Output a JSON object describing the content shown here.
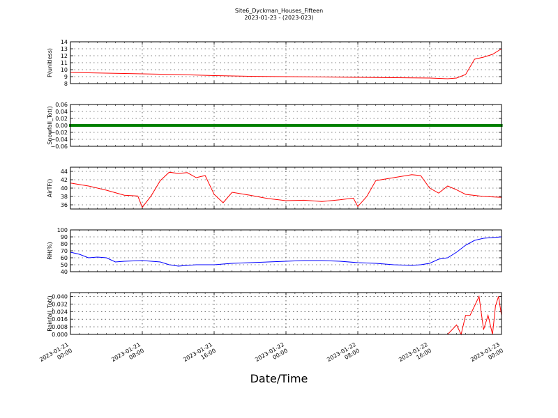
{
  "figure": {
    "title": "Site6_Dyckman_Houses_Fifteen",
    "subtitle": "2023-01-23 - (2023-023)",
    "xlabel": "Date/Time"
  },
  "chart_data": [
    {
      "type": "line",
      "ylabel": "P(unitless)",
      "xlim": [
        "2023-01-21 00:00",
        "2023-01-23 00:00"
      ],
      "ylim": [
        8,
        14
      ],
      "yticks": [
        8,
        9,
        10,
        11,
        12,
        13,
        14
      ],
      "ytick_labels": [
        "8",
        "9",
        "10",
        "11",
        "12",
        "13",
        "14"
      ],
      "grid": true,
      "color": "#ff0000",
      "x": [
        "2023-01-21 00:00",
        "2023-01-21 04:00",
        "2023-01-21 08:00",
        "2023-01-21 12:00",
        "2023-01-21 16:00",
        "2023-01-21 20:00",
        "2023-01-22 00:00",
        "2023-01-22 04:00",
        "2023-01-22 08:00",
        "2023-01-22 12:00",
        "2023-01-22 16:00",
        "2023-01-22 18:00",
        "2023-01-22 19:00",
        "2023-01-22 20:00",
        "2023-01-22 21:00",
        "2023-01-22 22:00",
        "2023-01-22 23:00",
        "2023-01-23 00:00"
      ],
      "values": [
        9.6,
        9.5,
        9.4,
        9.3,
        9.15,
        9.05,
        9.0,
        8.95,
        8.9,
        8.85,
        8.8,
        8.7,
        8.8,
        9.3,
        11.5,
        11.8,
        12.2,
        13.0
      ]
    },
    {
      "type": "line",
      "ylabel": "Snowfall_Tot()",
      "xlim": [
        "2023-01-21 00:00",
        "2023-01-23 00:00"
      ],
      "ylim": [
        -0.06,
        0.06
      ],
      "yticks": [
        -0.06,
        -0.04,
        -0.02,
        0.0,
        0.02,
        0.04,
        0.06
      ],
      "ytick_labels": [
        "−0.06",
        "−0.04",
        "−0.02",
        "0.00",
        "0.02",
        "0.04",
        "0.06"
      ],
      "grid": true,
      "color": "#008000",
      "marker": "square",
      "x": [
        "2023-01-21 00:00",
        "2023-01-23 00:00"
      ],
      "values": [
        0.0,
        0.0
      ]
    },
    {
      "type": "line",
      "ylabel": "AirTF()",
      "xlim": [
        "2023-01-21 00:00",
        "2023-01-23 00:00"
      ],
      "ylim": [
        35,
        45
      ],
      "yticks": [
        36,
        38,
        40,
        42,
        44
      ],
      "ytick_labels": [
        "36",
        "38",
        "40",
        "42",
        "44"
      ],
      "grid": true,
      "color": "#ff0000",
      "x": [
        "2023-01-21 00:00",
        "2023-01-21 02:00",
        "2023-01-21 04:00",
        "2023-01-21 06:00",
        "2023-01-21 07:30",
        "2023-01-21 08:00",
        "2023-01-21 09:00",
        "2023-01-21 10:00",
        "2023-01-21 11:00",
        "2023-01-21 12:00",
        "2023-01-21 13:00",
        "2023-01-21 14:00",
        "2023-01-21 15:00",
        "2023-01-21 16:00",
        "2023-01-21 17:00",
        "2023-01-21 18:00",
        "2023-01-21 20:00",
        "2023-01-21 22:00",
        "2023-01-22 00:00",
        "2023-01-22 02:00",
        "2023-01-22 04:00",
        "2023-01-22 06:00",
        "2023-01-22 07:30",
        "2023-01-22 08:00",
        "2023-01-22 09:00",
        "2023-01-22 10:00",
        "2023-01-22 12:00",
        "2023-01-22 14:00",
        "2023-01-22 15:00",
        "2023-01-22 16:00",
        "2023-01-22 17:00",
        "2023-01-22 18:00",
        "2023-01-22 19:00",
        "2023-01-22 20:00",
        "2023-01-22 22:00",
        "2023-01-23 00:00"
      ],
      "values": [
        41.2,
        40.5,
        39.5,
        38.3,
        38.1,
        35.4,
        38.2,
        41.8,
        43.8,
        43.5,
        43.7,
        42.5,
        43.0,
        38.5,
        36.5,
        39.0,
        38.3,
        37.5,
        37.0,
        37.1,
        36.8,
        37.2,
        37.6,
        35.6,
        38.0,
        41.8,
        42.5,
        43.2,
        43.0,
        40.0,
        38.8,
        40.5,
        39.6,
        38.5,
        38.0,
        37.8
      ]
    },
    {
      "type": "line",
      "ylabel": "RH(%)",
      "xlim": [
        "2023-01-21 00:00",
        "2023-01-23 00:00"
      ],
      "ylim": [
        40,
        100
      ],
      "yticks": [
        40,
        50,
        60,
        70,
        80,
        90,
        100
      ],
      "ytick_labels": [
        "40",
        "50",
        "60",
        "70",
        "80",
        "90",
        "100"
      ],
      "grid": true,
      "color": "#0000ff",
      "x": [
        "2023-01-21 00:00",
        "2023-01-21 01:00",
        "2023-01-21 02:00",
        "2023-01-21 03:00",
        "2023-01-21 04:00",
        "2023-01-21 05:00",
        "2023-01-21 06:00",
        "2023-01-21 08:00",
        "2023-01-21 10:00",
        "2023-01-21 11:00",
        "2023-01-21 12:00",
        "2023-01-21 14:00",
        "2023-01-21 16:00",
        "2023-01-21 18:00",
        "2023-01-21 20:00",
        "2023-01-21 22:00",
        "2023-01-22 00:00",
        "2023-01-22 02:00",
        "2023-01-22 04:00",
        "2023-01-22 06:00",
        "2023-01-22 08:00",
        "2023-01-22 10:00",
        "2023-01-22 12:00",
        "2023-01-22 14:00",
        "2023-01-22 15:00",
        "2023-01-22 16:00",
        "2023-01-22 17:00",
        "2023-01-22 18:00",
        "2023-01-22 19:00",
        "2023-01-22 20:00",
        "2023-01-22 21:00",
        "2023-01-22 22:00",
        "2023-01-23 00:00"
      ],
      "values": [
        68,
        65,
        60,
        61,
        60,
        54,
        55,
        56,
        54,
        50,
        48,
        50,
        50,
        52,
        53,
        54,
        55,
        56,
        56,
        55,
        53,
        52,
        50,
        49,
        50,
        52,
        58,
        60,
        68,
        78,
        85,
        88,
        90
      ]
    },
    {
      "type": "line",
      "ylabel": "Rainfall_Tot()",
      "xlim": [
        "2023-01-21 00:00",
        "2023-01-23 00:00"
      ],
      "ylim": [
        0,
        0.044
      ],
      "yticks": [
        0.0,
        0.008,
        0.016,
        0.024,
        0.032,
        0.04
      ],
      "ytick_labels": [
        "0.000",
        "0.008",
        "0.016",
        "0.024",
        "0.032",
        "0.040"
      ],
      "grid": true,
      "color": "#ff0000",
      "x": [
        "2023-01-21 00:00",
        "2023-01-22 18:00",
        "2023-01-22 19:00",
        "2023-01-22 19:30",
        "2023-01-22 20:00",
        "2023-01-22 20:30",
        "2023-01-22 21:00",
        "2023-01-22 21:30",
        "2023-01-22 22:00",
        "2023-01-22 22:30",
        "2023-01-22 23:00",
        "2023-01-22 23:20",
        "2023-01-22 23:40",
        "2023-01-23 00:00"
      ],
      "values": [
        0.0,
        0.0,
        0.01,
        0.0,
        0.02,
        0.02,
        0.03,
        0.04,
        0.005,
        0.02,
        0.0,
        0.03,
        0.04,
        0.02
      ]
    }
  ],
  "xticks": {
    "values": [
      "2023-01-21 00:00",
      "2023-01-21 08:00",
      "2023-01-21 16:00",
      "2023-01-22 00:00",
      "2023-01-22 08:00",
      "2023-01-22 16:00",
      "2023-01-23 00:00"
    ],
    "labels": [
      [
        "2023-01-21",
        "00:00"
      ],
      [
        "2023-01-21",
        "08:00"
      ],
      [
        "2023-01-21",
        "16:00"
      ],
      [
        "2023-01-22",
        "00:00"
      ],
      [
        "2023-01-22",
        "08:00"
      ],
      [
        "2023-01-22",
        "16:00"
      ],
      [
        "2023-01-23",
        "00:00"
      ]
    ]
  }
}
